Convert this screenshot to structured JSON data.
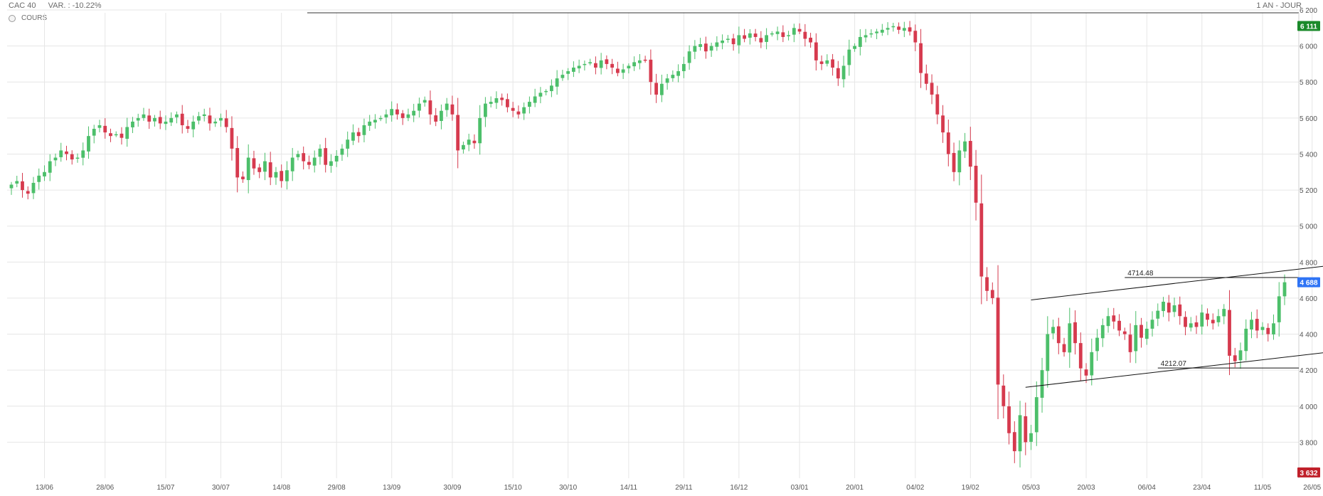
{
  "header": {
    "instrument": "CAC 40",
    "variation": "VAR. : -10.22%",
    "period": "1 AN - JOUR"
  },
  "legend": {
    "series_label": "COURS"
  },
  "colors": {
    "up": "#4cbf6a",
    "down": "#d63a4e",
    "grid": "#e6e6e6",
    "last_badge": "#2f74f5",
    "high_badge": "#1a8a2a",
    "low_badge": "#c0202a"
  },
  "chart_data": {
    "type": "candlestick",
    "ylim": [
      3600,
      6200
    ],
    "y_ticks": [
      3800,
      4000,
      4200,
      4400,
      4600,
      4800,
      5000,
      5200,
      5400,
      5600,
      5800,
      6000,
      6200
    ],
    "y_tick_labels": [
      "3 800",
      "4 000",
      "4 200",
      "4 400",
      "4 600",
      "4 800",
      "5 000",
      "5 200",
      "5 400",
      "5 600",
      "5 800",
      "6 000",
      "6 200"
    ],
    "x_ticks": [
      "13/06",
      "28/06",
      "15/07",
      "30/07",
      "14/08",
      "29/08",
      "13/09",
      "30/09",
      "15/10",
      "30/10",
      "14/11",
      "29/11",
      "16/12",
      "03/01",
      "20/01",
      "04/02",
      "19/02",
      "05/03",
      "20/03",
      "06/04",
      "23/04",
      "11/05",
      "26/05"
    ],
    "x_tick_index": [
      6,
      17,
      28,
      38,
      49,
      59,
      69,
      80,
      91,
      101,
      112,
      122,
      132,
      143,
      153,
      164,
      174,
      185,
      195,
      206,
      216,
      227,
      236
    ],
    "badges": [
      {
        "label": "6 111",
        "value": 6111,
        "kind": "high"
      },
      {
        "label": "4 688",
        "value": 4688,
        "kind": "last"
      },
      {
        "label": "3 632",
        "value": 3632,
        "kind": "low"
      }
    ],
    "horizontal_lines": [
      {
        "label": "4714.48",
        "value": 4714.48,
        "from_index": 202
      },
      {
        "label": "4212.07",
        "value": 4212.07,
        "from_index": 208
      }
    ],
    "trend_lines": [
      {
        "from": [
          185,
          4590
        ],
        "to": [
          239,
          4780
        ]
      },
      {
        "from": [
          184,
          4105
        ],
        "to": [
          239,
          4300
        ]
      }
    ],
    "closes": [
      5230,
      5250,
      5200,
      5180,
      5240,
      5280,
      5300,
      5360,
      5380,
      5420,
      5400,
      5370,
      5380,
      5420,
      5500,
      5540,
      5560,
      5520,
      5500,
      5510,
      5490,
      5550,
      5580,
      5600,
      5620,
      5580,
      5600,
      5570,
      5580,
      5600,
      5620,
      5560,
      5540,
      5580,
      5610,
      5620,
      5570,
      5580,
      5600,
      5550,
      5430,
      5270,
      5260,
      5380,
      5320,
      5300,
      5360,
      5270,
      5300,
      5250,
      5310,
      5380,
      5400,
      5360,
      5340,
      5380,
      5430,
      5340,
      5360,
      5390,
      5430,
      5480,
      5520,
      5500,
      5560,
      5580,
      5590,
      5600,
      5620,
      5650,
      5620,
      5600,
      5620,
      5640,
      5680,
      5700,
      5620,
      5580,
      5640,
      5680,
      5620,
      5420,
      5450,
      5480,
      5460,
      5600,
      5680,
      5690,
      5710,
      5700,
      5660,
      5640,
      5620,
      5660,
      5690,
      5720,
      5740,
      5750,
      5780,
      5820,
      5840,
      5860,
      5880,
      5890,
      5900,
      5910,
      5880,
      5920,
      5900,
      5880,
      5850,
      5870,
      5890,
      5910,
      5920,
      5920,
      5800,
      5730,
      5790,
      5820,
      5840,
      5860,
      5900,
      5970,
      6000,
      6010,
      5970,
      6000,
      6020,
      6030,
      6040,
      6010,
      6060,
      6040,
      6070,
      6050,
      6020,
      6060,
      6070,
      6080,
      6050,
      6060,
      6100,
      6080,
      6040,
      6020,
      5920,
      5900,
      5920,
      5880,
      5820,
      5890,
      5980,
      6000,
      6050,
      6060,
      6070,
      6080,
      6090,
      6100,
      6110,
      6090,
      6100,
      6080,
      6020,
      5850,
      5790,
      5730,
      5620,
      5520,
      5400,
      5300,
      5420,
      5470,
      5330,
      5130,
      4720,
      4640,
      4600,
      4120,
      4000,
      3850,
      3750,
      3950,
      3800,
      3850,
      4050,
      4200,
      4400,
      4440,
      4350,
      4300,
      4460,
      4350,
      4210,
      4170,
      4300,
      4380,
      4450,
      4500,
      4470,
      4420,
      4400,
      4300,
      4450,
      4380,
      4430,
      4480,
      4530,
      4580,
      4520,
      4560,
      4500,
      4440,
      4460,
      4440,
      4520,
      4480,
      4460,
      4500,
      4540,
      4280,
      4250,
      4310,
      4430,
      4480,
      4420,
      4440,
      4400,
      4460,
      4610,
      4688
    ]
  }
}
